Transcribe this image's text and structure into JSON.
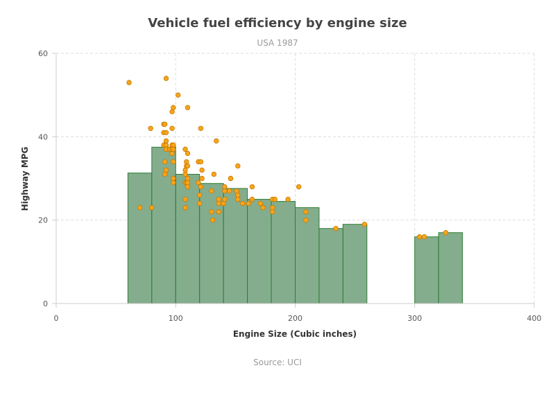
{
  "chart_data": {
    "type": "bar",
    "title": "Vehicle fuel efficiency by engine size",
    "subtitle": "USA 1987",
    "xlabel": "Engine Size (Cubic inches)",
    "ylabel": "Highway MPG",
    "credit": "Source: UCI",
    "xlim": [
      0,
      400
    ],
    "ylim": [
      0,
      60
    ],
    "xticks": [
      0,
      100,
      200,
      300,
      400
    ],
    "yticks": [
      0,
      20,
      40,
      60
    ],
    "grid": true,
    "bin_width": 20,
    "bar_color": "#6f9f7a",
    "bar_edge_color": "#2e7d32",
    "point_color": "#f7a51c",
    "point_edge_color": "#c77900",
    "series": [
      {
        "type": "histogram-bars",
        "bins": [
          {
            "x0": 60,
            "x1": 80,
            "value": 31.3
          },
          {
            "x0": 80,
            "x1": 100,
            "value": 37.5
          },
          {
            "x0": 100,
            "x1": 120,
            "value": 31.0
          },
          {
            "x0": 120,
            "x1": 140,
            "value": 28.8
          },
          {
            "x0": 140,
            "x1": 160,
            "value": 27.6
          },
          {
            "x0": 160,
            "x1": 180,
            "value": 25.0
          },
          {
            "x0": 180,
            "x1": 200,
            "value": 24.5
          },
          {
            "x0": 200,
            "x1": 220,
            "value": 23.0
          },
          {
            "x0": 220,
            "x1": 240,
            "value": 18.0
          },
          {
            "x0": 240,
            "x1": 260,
            "value": 19.0
          },
          {
            "x0": 300,
            "x1": 320,
            "value": 16.0
          },
          {
            "x0": 320,
            "x1": 340,
            "value": 17.0
          }
        ]
      },
      {
        "type": "scatter",
        "points": [
          [
            61,
            53
          ],
          [
            70,
            23
          ],
          [
            79,
            42
          ],
          [
            80,
            23
          ],
          [
            90,
            38
          ],
          [
            90,
            41
          ],
          [
            90,
            43
          ],
          [
            91,
            34
          ],
          [
            91,
            31
          ],
          [
            91,
            43
          ],
          [
            92,
            38
          ],
          [
            92,
            32
          ],
          [
            92,
            41
          ],
          [
            92,
            54
          ],
          [
            92,
            37
          ],
          [
            92,
            39
          ],
          [
            95,
            37
          ],
          [
            97,
            42
          ],
          [
            97,
            46
          ],
          [
            97,
            36
          ],
          [
            97,
            38
          ],
          [
            97,
            37
          ],
          [
            98,
            38
          ],
          [
            98,
            30
          ],
          [
            98,
            29
          ],
          [
            98,
            47
          ],
          [
            98,
            34
          ],
          [
            98,
            38
          ],
          [
            98,
            37
          ],
          [
            102,
            50
          ],
          [
            108,
            37
          ],
          [
            108,
            25
          ],
          [
            108,
            29
          ],
          [
            108,
            31
          ],
          [
            108,
            23
          ],
          [
            108,
            32
          ],
          [
            109,
            33
          ],
          [
            109,
            34
          ],
          [
            109,
            29
          ],
          [
            110,
            29
          ],
          [
            110,
            30
          ],
          [
            110,
            47
          ],
          [
            110,
            33
          ],
          [
            110,
            36
          ],
          [
            110,
            28
          ],
          [
            119,
            29
          ],
          [
            119,
            34
          ],
          [
            120,
            24
          ],
          [
            120,
            26
          ],
          [
            121,
            28
          ],
          [
            121,
            34
          ],
          [
            121,
            42
          ],
          [
            122,
            32
          ],
          [
            122,
            30
          ],
          [
            130,
            27
          ],
          [
            130,
            22
          ],
          [
            131,
            20
          ],
          [
            132,
            31
          ],
          [
            134,
            39
          ],
          [
            136,
            24
          ],
          [
            136,
            25
          ],
          [
            136,
            22
          ],
          [
            140,
            24
          ],
          [
            141,
            25
          ],
          [
            141,
            27
          ],
          [
            141,
            28
          ],
          [
            145,
            27
          ],
          [
            146,
            30
          ],
          [
            146,
            30
          ],
          [
            151,
            27
          ],
          [
            152,
            25
          ],
          [
            152,
            33
          ],
          [
            152,
            26
          ],
          [
            156,
            24
          ],
          [
            161,
            24
          ],
          [
            164,
            25
          ],
          [
            164,
            28
          ],
          [
            171,
            24
          ],
          [
            173,
            23
          ],
          [
            181,
            25
          ],
          [
            181,
            22
          ],
          [
            181,
            23
          ],
          [
            183,
            25
          ],
          [
            194,
            25
          ],
          [
            203,
            28
          ],
          [
            209,
            22
          ],
          [
            209,
            20
          ],
          [
            234,
            18
          ],
          [
            258,
            19
          ],
          [
            304,
            16
          ],
          [
            308,
            16
          ],
          [
            326,
            17
          ]
        ]
      }
    ]
  }
}
